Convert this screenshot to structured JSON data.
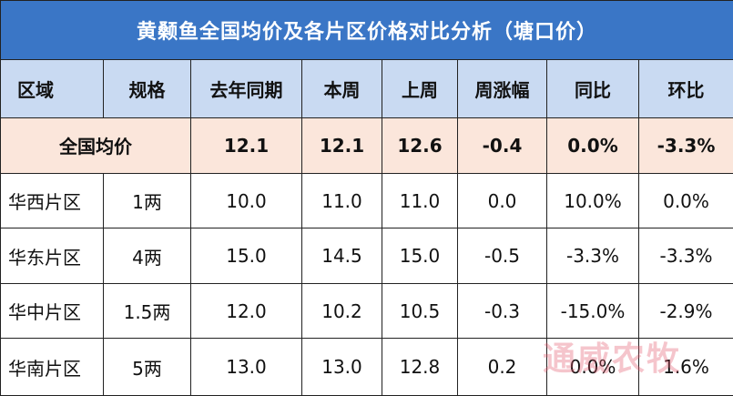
{
  "title": "黄颡鱼全国均价及各片区价格对比分析（塘口价）",
  "headers": [
    "区域",
    "规格",
    "去年同期",
    "本周",
    "上周",
    "周涨幅",
    "同比",
    "环比"
  ],
  "national": {
    "label": "全国均价",
    "last_year": "12.1",
    "this_week": "12.1",
    "last_week": "12.6",
    "weekly_change": "-0.4",
    "yoy": "0.0%",
    "mom": "-3.3%"
  },
  "rows": [
    {
      "region": "华西片区",
      "spec": "1两",
      "last_year": "10.0",
      "this_week": "11.0",
      "last_week": "11.0",
      "weekly_change": "0.0",
      "yoy": "10.0%",
      "mom": "0.0%"
    },
    {
      "region": "华东片区",
      "spec": "4两",
      "last_year": "15.0",
      "this_week": "14.5",
      "last_week": "15.0",
      "weekly_change": "-0.5",
      "yoy": "-3.3%",
      "mom": "-3.3%"
    },
    {
      "region": "华中片区",
      "spec": "1.5两",
      "last_year": "12.0",
      "this_week": "10.2",
      "last_week": "10.5",
      "weekly_change": "-0.3",
      "yoy": "-15.0%",
      "mom": "-2.9%"
    },
    {
      "region": "华南片区",
      "spec": "5两",
      "last_year": "13.0",
      "this_week": "13.0",
      "last_week": "12.8",
      "weekly_change": "0.2",
      "yoy": "0.0%",
      "mom": "1.6%"
    }
  ],
  "watermark": "通威农牧"
}
